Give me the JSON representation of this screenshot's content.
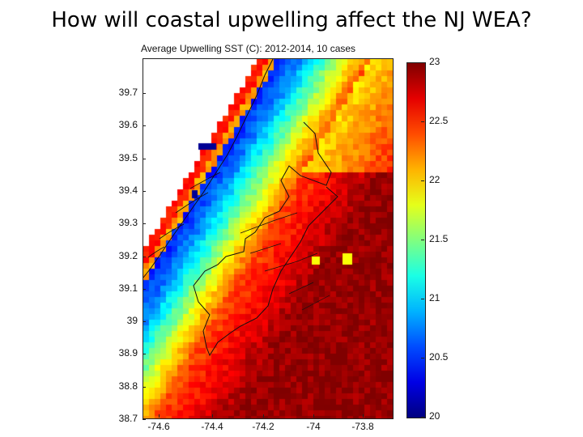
{
  "slide": {
    "title": "How will coastal upwelling affect the NJ WEA?"
  },
  "figure": {
    "title": "Average Upwelling SST (C): 2012-2014, 10 cases"
  },
  "axes": {
    "y_ticks": [
      "39.7",
      "39.6",
      "39.5",
      "39.4",
      "39.3",
      "39.2",
      "39.1",
      "39",
      "38.9",
      "38.8",
      "38.7"
    ],
    "x_ticks": [
      "-74.6",
      "-74.4",
      "-74.2",
      "-74",
      "-73.8"
    ],
    "lat_range": [
      38.7,
      39.8
    ],
    "lon_range": [
      -74.7,
      -73.72
    ]
  },
  "colorbar": {
    "labels": [
      "23",
      "22.5",
      "22",
      "21.5",
      "21",
      "20.5",
      "20"
    ],
    "range": [
      20,
      23
    ],
    "colormap": "jet"
  },
  "colors": {
    "land": "#ffffff",
    "outline": "#111111",
    "min_color": "#00008f",
    "max_color": "#800000"
  }
}
